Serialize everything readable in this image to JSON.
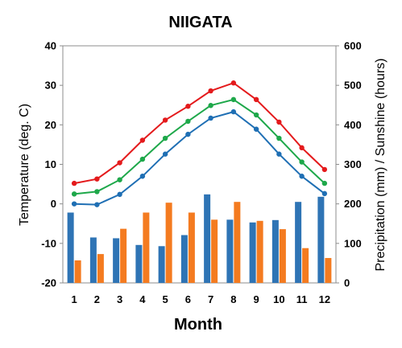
{
  "chart_data": {
    "type": "bar+line",
    "title": "NIIGATA",
    "xlabel": "Month",
    "ylabel_left": "Temperature (deg. C)",
    "ylabel_right": "Precipitation (mm) / Sunshine (hours)",
    "categories": [
      "1",
      "2",
      "3",
      "4",
      "5",
      "6",
      "7",
      "8",
      "9",
      "10",
      "11",
      "12"
    ],
    "ylim_left": [
      -20,
      40
    ],
    "yticks_left": [
      "-20",
      "-10",
      "0",
      "10",
      "20",
      "30",
      "40"
    ],
    "ylim_right": [
      0,
      600
    ],
    "yticks_right": [
      "0",
      "100",
      "200",
      "300",
      "400",
      "500",
      "600"
    ],
    "grid": false,
    "line_series": [
      {
        "color": "#e41a1c",
        "values": [
          5.2,
          6.3,
          10.4,
          16.1,
          21.2,
          24.7,
          28.6,
          30.6,
          26.4,
          20.7,
          14.2,
          8.7
        ]
      },
      {
        "color": "#1ea84a",
        "values": [
          2.5,
          3.1,
          6.1,
          11.3,
          16.6,
          20.9,
          24.9,
          26.4,
          22.5,
          16.6,
          10.6,
          5.2
        ]
      },
      {
        "color": "#1f6fb4",
        "values": [
          0.0,
          -0.2,
          2.4,
          7.0,
          12.6,
          17.6,
          21.7,
          23.3,
          18.9,
          12.6,
          7.0,
          2.6
        ]
      }
    ],
    "bar_series": [
      {
        "color": "#2e74b5",
        "values": [
          178,
          115,
          113,
          96,
          93,
          121,
          224,
          160,
          153,
          159,
          205,
          218
        ]
      },
      {
        "color": "#f47b20",
        "values": [
          57,
          73,
          137,
          178,
          203,
          178,
          160,
          205,
          157,
          136,
          88,
          63
        ]
      }
    ]
  }
}
